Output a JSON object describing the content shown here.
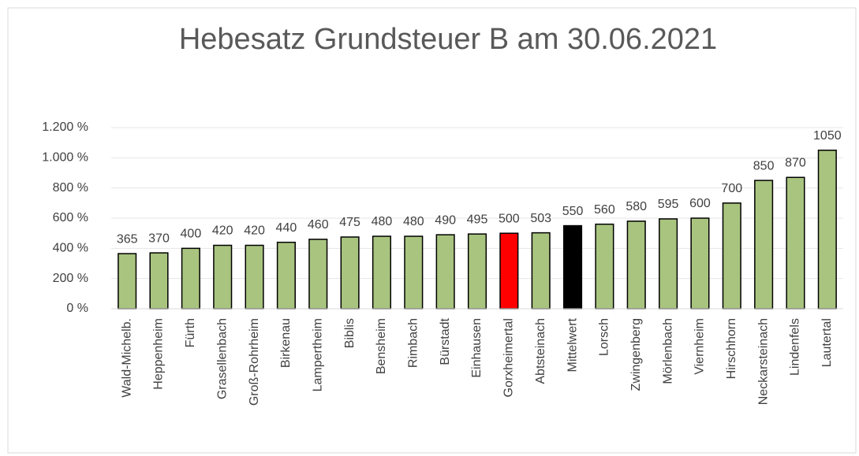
{
  "chart_data": {
    "type": "bar",
    "title": "Hebesatz  Grundsteuer  B  am  30.06.2021",
    "categories": [
      "Wald-Michelb.",
      "Heppenheim",
      "Fürth",
      "Grasellenbach",
      "Groß-Rohrheim",
      "Birkenau",
      "Lampertheim",
      "Biblis",
      "Bensheim",
      "Rimbach",
      "Bürstadt",
      "Einhausen",
      "Gorxheimertal",
      "Abtsteinach",
      "Mittelwert",
      "Lorsch",
      "Zwingenberg",
      "Mörlenbach",
      "Viernheim",
      "Hirschhorn",
      "Neckarsteinach",
      "Lindenfels",
      "Lautertal"
    ],
    "values": [
      365,
      370,
      400,
      420,
      420,
      440,
      460,
      475,
      480,
      480,
      490,
      495,
      500,
      503,
      550,
      560,
      580,
      595,
      600,
      700,
      850,
      870,
      1050
    ],
    "colors": [
      "#a9c47f",
      "#a9c47f",
      "#a9c47f",
      "#a9c47f",
      "#a9c47f",
      "#a9c47f",
      "#a9c47f",
      "#a9c47f",
      "#a9c47f",
      "#a9c47f",
      "#a9c47f",
      "#a9c47f",
      "#ff0000",
      "#a9c47f",
      "#000000",
      "#a9c47f",
      "#a9c47f",
      "#a9c47f",
      "#a9c47f",
      "#a9c47f",
      "#a9c47f",
      "#a9c47f",
      "#a9c47f"
    ],
    "ylim": [
      0,
      1200
    ],
    "yticks": [
      {
        "value": 0,
        "label": "0 %"
      },
      {
        "value": 200,
        "label": "200 %"
      },
      {
        "value": 400,
        "label": "400 %"
      },
      {
        "value": 600,
        "label": "600 %"
      },
      {
        "value": 800,
        "label": "800 %"
      },
      {
        "value": 1000,
        "label": "1.000 %"
      },
      {
        "value": 1200,
        "label": "1.200 %"
      }
    ],
    "grid": true
  }
}
